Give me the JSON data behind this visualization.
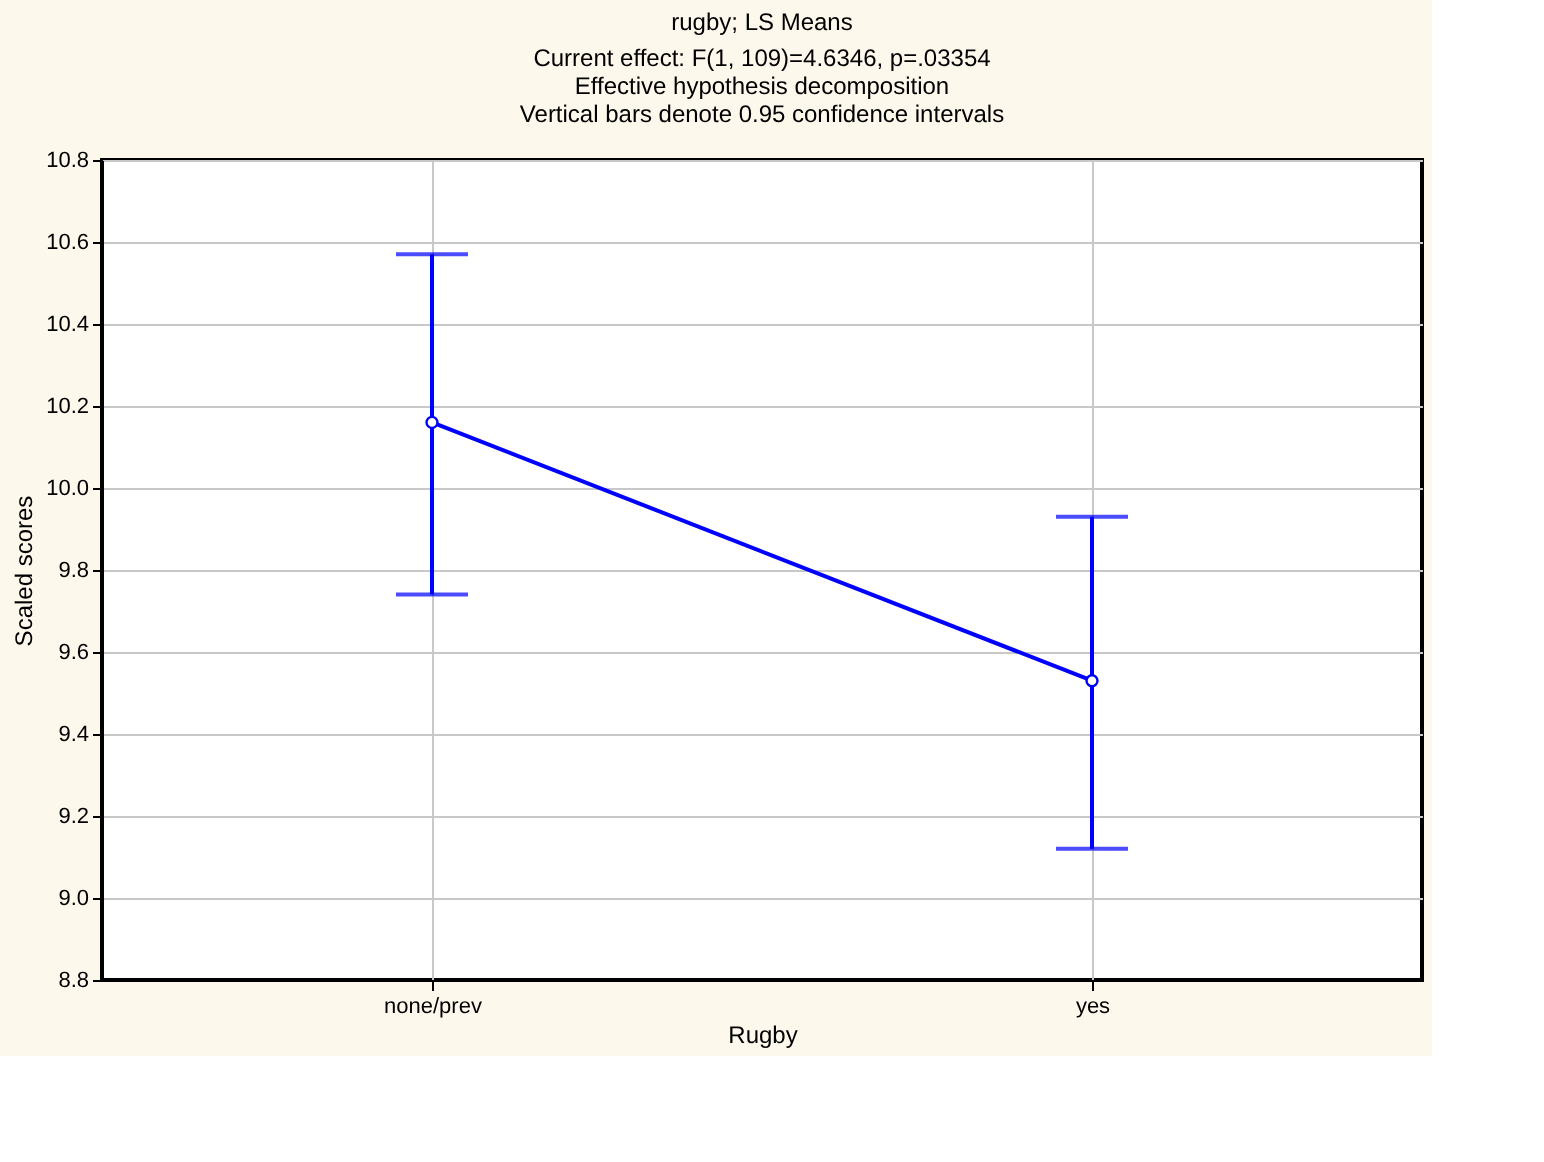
{
  "chart_data": {
    "type": "line",
    "title": "rugby; LS Means",
    "subtitle": [
      "Current effect: F(1, 109)=4.6346, p=.03354",
      "Effective hypothesis decomposition",
      "Vertical bars denote 0.95 confidence intervals"
    ],
    "xlabel": "Rugby",
    "ylabel": "Scaled scores",
    "categories": [
      "none/prev",
      "yes"
    ],
    "series": [
      {
        "color": "#0000ff",
        "values": [
          10.16,
          9.53
        ],
        "errors": [
          [
            9.74,
            10.57
          ],
          [
            9.12,
            9.93
          ]
        ]
      }
    ],
    "ylim": [
      8.8,
      10.8
    ],
    "yticks": [
      8.8,
      {
        "value": 9,
        "label": "9.0"
      },
      9.2,
      9.4,
      9.6,
      9.8,
      {
        "value": 10,
        "label": "10.0"
      },
      10.2,
      10.4,
      10.6,
      10.8
    ],
    "grid": true,
    "marker": "circle",
    "line_style": "solid"
  }
}
